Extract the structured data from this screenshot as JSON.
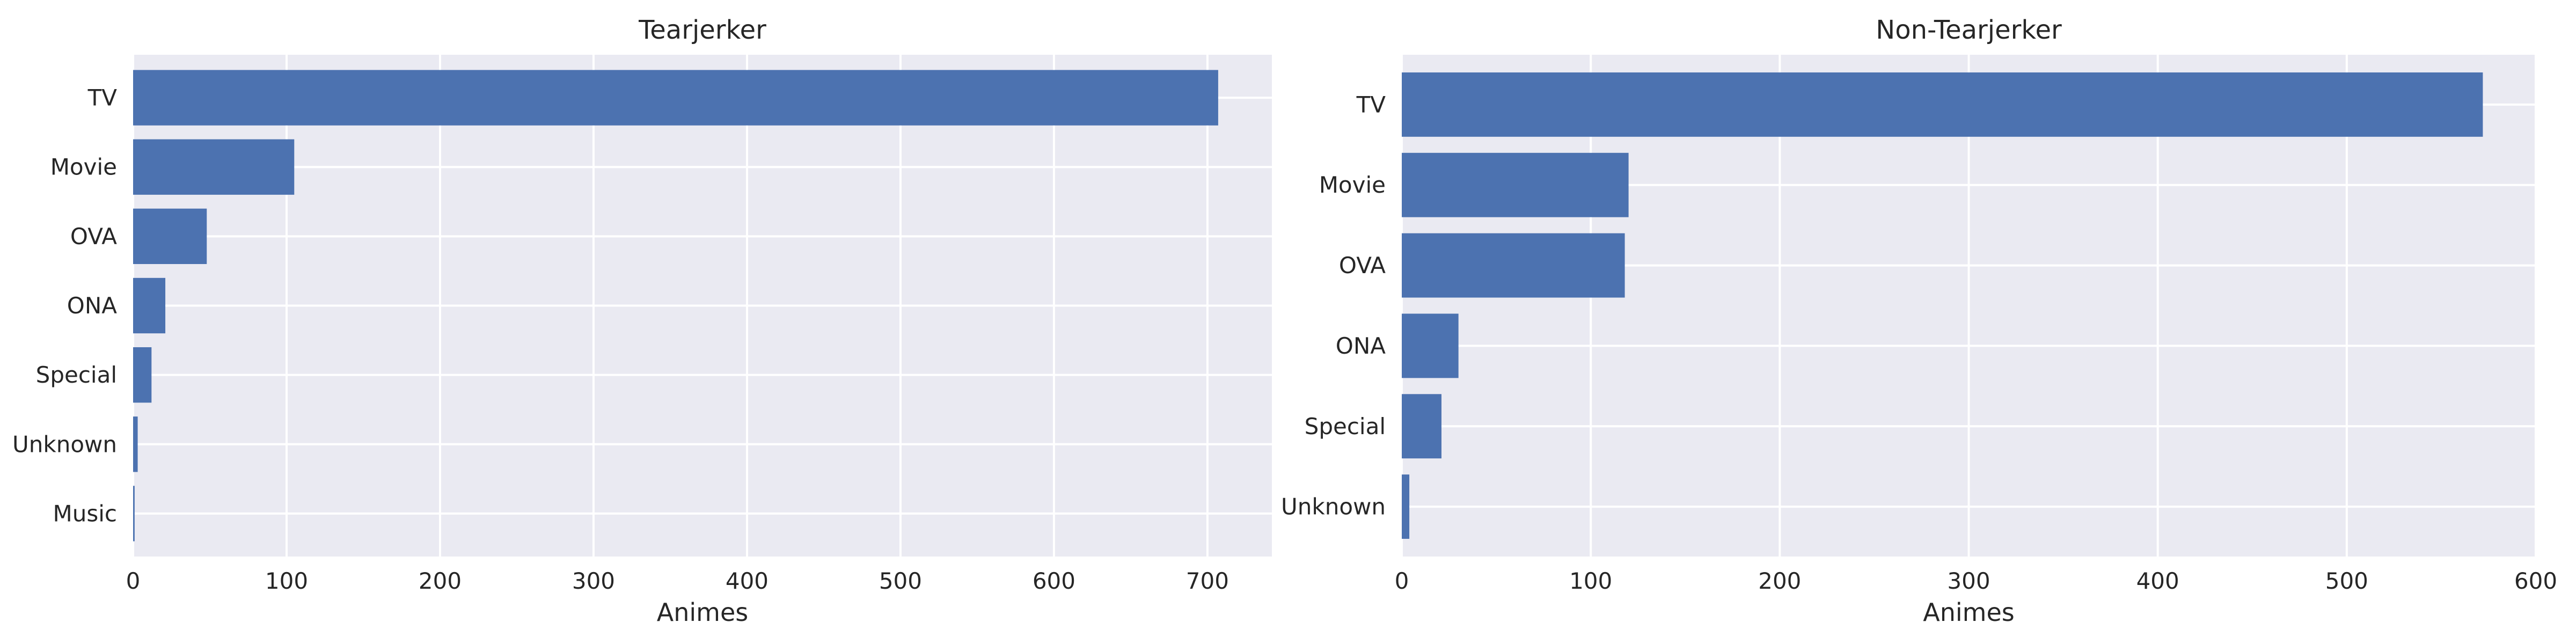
{
  "chart_data": [
    {
      "type": "bar",
      "orientation": "horizontal",
      "title": "Tearjerker",
      "xlabel": "Animes",
      "ylabel": "",
      "categories": [
        "TV",
        "Movie",
        "OVA",
        "ONA",
        "Special",
        "Unknown",
        "Music"
      ],
      "values": [
        707,
        105,
        48,
        21,
        12,
        3,
        1
      ],
      "xlim": [
        0,
        742
      ],
      "xticks": [
        "0",
        "100",
        "200",
        "300",
        "400",
        "500",
        "600",
        "700"
      ],
      "grid": true,
      "bar_color": "#4C72B0",
      "background_color": "#EAEAF2"
    },
    {
      "type": "bar",
      "orientation": "horizontal",
      "title": "Non-Tearjerker",
      "xlabel": "Animes",
      "ylabel": "",
      "categories": [
        "TV",
        "Movie",
        "OVA",
        "ONA",
        "Special",
        "Unknown"
      ],
      "values": [
        572,
        120,
        118,
        30,
        21,
        4
      ],
      "xlim": [
        0,
        600
      ],
      "xticks": [
        "0",
        "100",
        "200",
        "300",
        "400",
        "500",
        "600"
      ],
      "grid": true,
      "bar_color": "#4C72B0",
      "background_color": "#EAEAF2"
    }
  ]
}
